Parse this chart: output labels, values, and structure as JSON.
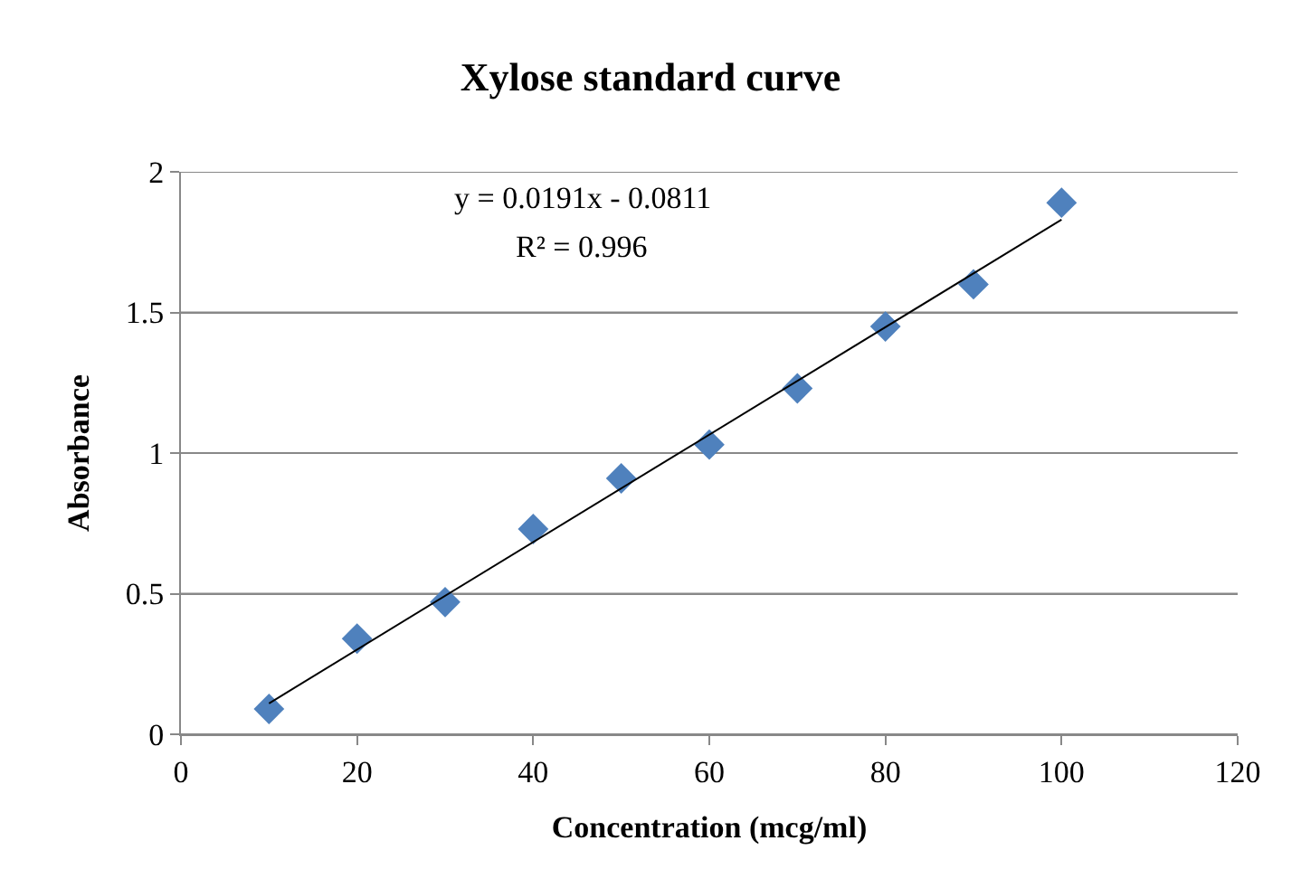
{
  "chart_data": {
    "type": "scatter",
    "title": "Xylose standard curve",
    "xlabel": "Concentration (mcg/ml)",
    "ylabel": "Absorbance",
    "x": [
      10,
      20,
      30,
      40,
      50,
      60,
      70,
      80,
      90,
      100
    ],
    "series": [
      {
        "color": "#4f81bd",
        "marker": "diamond",
        "values": [
          0.09,
          0.34,
          0.47,
          0.73,
          0.91,
          1.03,
          1.23,
          1.45,
          1.6,
          1.89
        ]
      },
      {
        "type": "line",
        "color": "#000000",
        "marker": "none",
        "line_style": "solid",
        "x": [
          10,
          100
        ],
        "values": [
          0.11,
          1.83
        ]
      }
    ],
    "annotations": [
      "y = 0.0191x - 0.0811",
      "R² = 0.996"
    ],
    "xlim": [
      0,
      120
    ],
    "xticks": [
      0,
      20,
      40,
      60,
      80,
      100,
      120
    ],
    "ylim": [
      0,
      2
    ],
    "yticks": [
      0,
      0.5,
      1,
      1.5,
      2
    ],
    "grid": "y",
    "legend": false
  }
}
